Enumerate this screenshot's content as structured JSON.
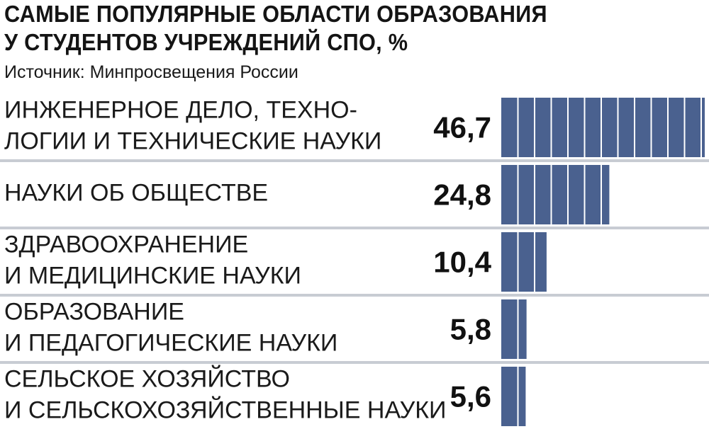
{
  "title_line1": "САМЫЕ ПОПУЛЯРНЫЕ ОБЛАСТИ ОБРАЗОВАНИЯ",
  "title_line2": "У СТУДЕНТОВ УЧРЕЖДЕНИЙ СПО, %",
  "source": "Источник: Минпросвещения России",
  "colors": {
    "bar": "#4a618f",
    "divider": "#c8ccd3"
  },
  "chart_data": {
    "type": "bar",
    "orientation": "horizontal",
    "unit": "%",
    "xlim": [
      0,
      46.7
    ],
    "categories": [
      [
        "ИНЖЕНЕРНОЕ ДЕЛО, ТЕХНО-",
        "ЛОГИИ И ТЕХНИЧЕСКИЕ НАУКИ"
      ],
      [
        "НАУКИ ОБ ОБЩЕСТВЕ"
      ],
      [
        "ЗДРАВООХРАНЕНИЕ",
        "И МЕДИЦИНСКИЕ НАУКИ"
      ],
      [
        "ОБРАЗОВАНИЕ",
        "И ПЕДАГОГИЧЕСКИЕ НАУКИ"
      ],
      [
        "СЕЛЬСКОЕ ХОЗЯЙСТВО",
        "И СЕЛЬСКОХОЗЯЙСТВЕННЫЕ НАУКИ"
      ]
    ],
    "values": [
      46.7,
      24.8,
      10.4,
      5.8,
      5.6
    ],
    "value_labels": [
      "46,7",
      "24,8",
      "10,4",
      "5,8",
      "5,6"
    ]
  }
}
